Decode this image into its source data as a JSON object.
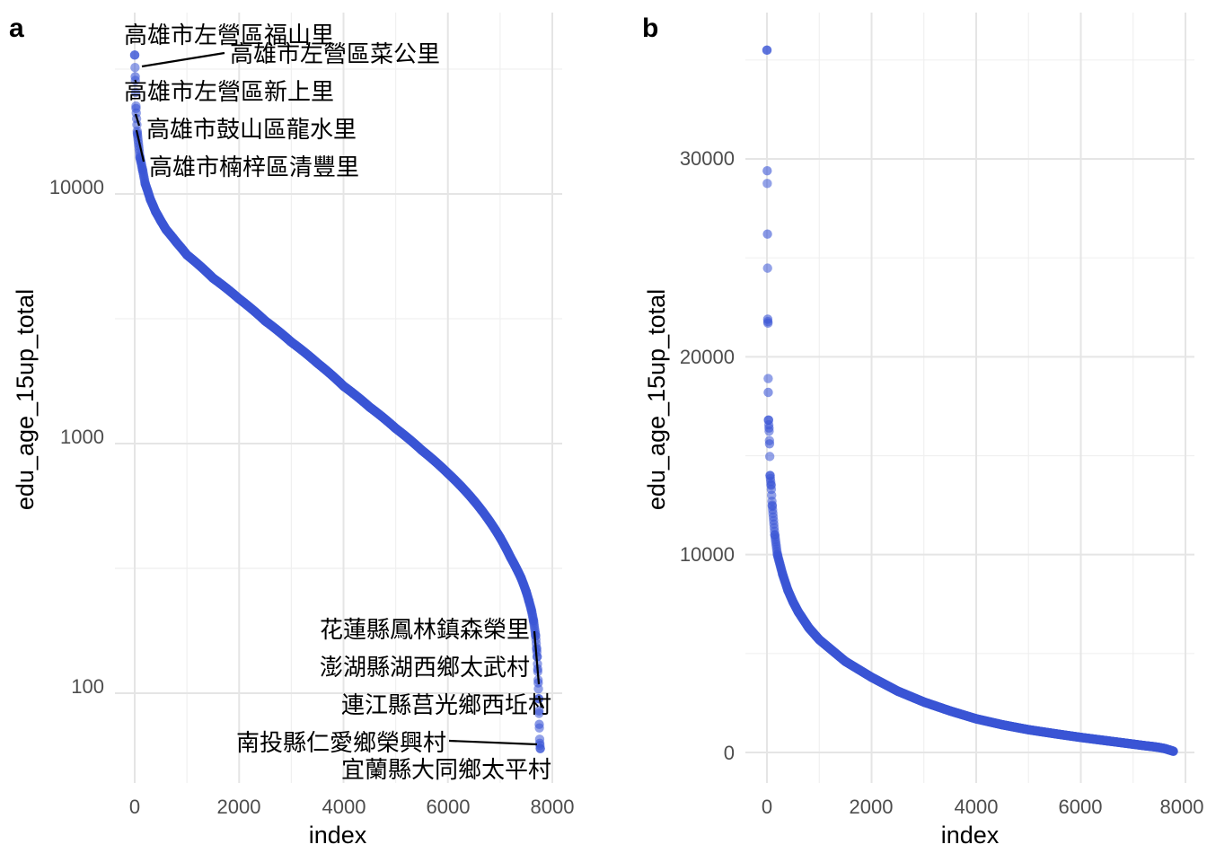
{
  "chart_data": [
    {
      "panel": "a",
      "type": "scatter",
      "xlabel": "index",
      "ylabel": "edu_age_15up_total",
      "xscale": "linear",
      "yscale": "log10",
      "xlim": [
        -300,
        8100
      ],
      "ylim": [
        55,
        42000
      ],
      "x_ticks": [
        "0",
        "2000",
        "4000",
        "6000",
        "8000"
      ],
      "y_ticks": [
        "100",
        "1000",
        "10000"
      ],
      "point_color": "#3a55d6",
      "grid": true,
      "series": [
        {
          "x": [
            0,
            10,
            25,
            50,
            100,
            150,
            200,
            300,
            400,
            500,
            600,
            800,
            1000,
            1500,
            2000,
            2500,
            3000,
            3500,
            4000,
            4500,
            5000,
            5500,
            6000,
            6500,
            7000,
            7200,
            7400,
            7500,
            7550,
            7600,
            7640,
            7680,
            7700,
            7710,
            7720,
            7730,
            7740,
            7745,
            7750,
            7760,
            7770
          ],
          "y": [
            36000,
            29500,
            22000,
            17500,
            14000,
            12500,
            11000,
            9500,
            8500,
            7800,
            7200,
            6400,
            5700,
            4600,
            3800,
            3100,
            2550,
            2100,
            1700,
            1400,
            1150,
            940,
            760,
            590,
            420,
            350,
            290,
            255,
            235,
            215,
            195,
            170,
            150,
            140,
            125,
            110,
            95,
            85,
            75,
            63,
            60
          ]
        }
      ],
      "annotations": [
        {
          "label": "高雄市左營區福山里"
        },
        {
          "label": "高雄市左營區菜公里"
        },
        {
          "label": "高雄市左營區新上里"
        },
        {
          "label": "高雄市鼓山區龍水里"
        },
        {
          "label": "高雄市楠梓區清豐里"
        },
        {
          "label": "花蓮縣鳳林鎮森榮里"
        },
        {
          "label": "澎湖縣湖西鄉太武村"
        },
        {
          "label": "連江縣莒光鄉西坵村"
        },
        {
          "label": "南投縣仁愛鄉榮興村"
        },
        {
          "label": "宜蘭縣大同鄉太平村"
        }
      ]
    },
    {
      "panel": "b",
      "type": "scatter",
      "xlabel": "index",
      "ylabel": "edu_age_15up_total",
      "xscale": "linear",
      "yscale": "linear",
      "xlim": [
        -300,
        8100
      ],
      "ylim": [
        -1500,
        36500
      ],
      "x_ticks": [
        "0",
        "2000",
        "4000",
        "6000",
        "8000"
      ],
      "y_ticks": [
        "0",
        "10000",
        "20000",
        "30000"
      ],
      "point_color": "#3a55d6",
      "grid": true,
      "series": [
        {
          "x": [
            0,
            5,
            10,
            15,
            20,
            25,
            30,
            40,
            50,
            60,
            80,
            100,
            150,
            200,
            300,
            400,
            500,
            600,
            800,
            1000,
            1500,
            2000,
            2500,
            3000,
            3500,
            4000,
            4500,
            5000,
            5500,
            6000,
            6500,
            7000,
            7200,
            7400,
            7500,
            7600,
            7700,
            7770
          ],
          "y": [
            35500,
            29400,
            26200,
            21900,
            21700,
            18200,
            16800,
            16400,
            15600,
            14000,
            13500,
            12500,
            11000,
            10000,
            9000,
            8200,
            7600,
            7100,
            6300,
            5700,
            4600,
            3800,
            3100,
            2550,
            2100,
            1700,
            1400,
            1150,
            950,
            760,
            590,
            420,
            350,
            290,
            250,
            200,
            120,
            60
          ]
        }
      ]
    }
  ]
}
